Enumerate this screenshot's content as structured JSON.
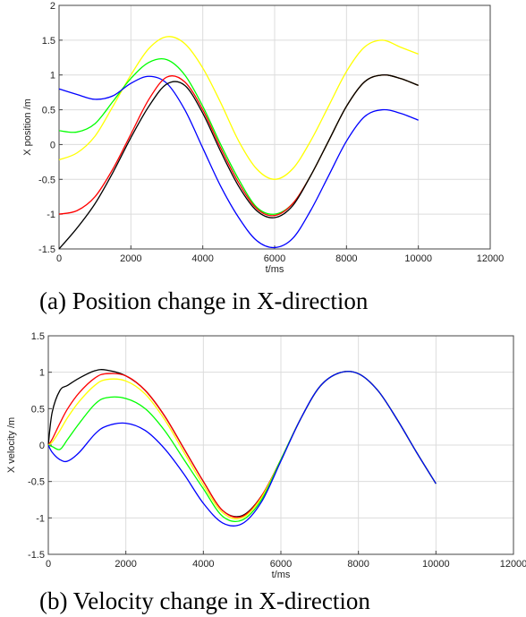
{
  "chart_data": [
    {
      "type": "line",
      "caption": "(a) Position change in X-direction",
      "xlabel": "t/ms",
      "ylabel": "X position /m",
      "xlim": [
        0,
        12000
      ],
      "ylim": [
        -1.5,
        2
      ],
      "xticks": [
        "0",
        "2000",
        "4000",
        "6000",
        "8000",
        "10000",
        "12000"
      ],
      "yticks": [
        "-1.5",
        "-1",
        "-0.5",
        "0",
        "0.5",
        "1",
        "1.5",
        "2"
      ],
      "grid": true,
      "x": [
        0,
        500,
        1000,
        1500,
        2000,
        2500,
        3000,
        3500,
        4000,
        4500,
        5000,
        5500,
        6000,
        6500,
        7000,
        7500,
        8000,
        8500,
        9000,
        9500,
        10000
      ],
      "series": [
        {
          "color": "#ffff00",
          "values": [
            -0.22,
            -0.12,
            0.12,
            0.55,
            1.0,
            1.38,
            1.55,
            1.45,
            1.1,
            0.6,
            0.05,
            -0.35,
            -0.5,
            -0.35,
            0.05,
            0.55,
            1.05,
            1.4,
            1.5,
            1.4,
            1.3
          ]
        },
        {
          "color": "#00ff00",
          "values": [
            0.2,
            0.18,
            0.3,
            0.62,
            0.95,
            1.18,
            1.22,
            1.0,
            0.55,
            0.0,
            -0.5,
            -0.9,
            -1.0,
            -0.85,
            -0.45,
            0.05,
            0.55,
            0.9,
            1.0,
            0.95,
            0.85
          ]
        },
        {
          "color": "#0000ff",
          "values": [
            0.8,
            0.72,
            0.65,
            0.7,
            0.88,
            0.98,
            0.88,
            0.5,
            -0.05,
            -0.6,
            -1.05,
            -1.38,
            -1.48,
            -1.35,
            -0.95,
            -0.45,
            0.05,
            0.4,
            0.5,
            0.45,
            0.35
          ]
        },
        {
          "color": "#ff0000",
          "values": [
            -1.0,
            -0.95,
            -0.75,
            -0.35,
            0.15,
            0.65,
            0.97,
            0.9,
            0.5,
            -0.05,
            -0.55,
            -0.92,
            -1.02,
            -0.85,
            -0.45,
            0.05,
            0.55,
            0.9,
            1.0,
            0.95,
            0.85
          ]
        },
        {
          "color": "#000000",
          "values": [
            -1.5,
            -1.2,
            -0.85,
            -0.4,
            0.1,
            0.55,
            0.87,
            0.85,
            0.45,
            -0.1,
            -0.6,
            -0.95,
            -1.05,
            -0.88,
            -0.45,
            0.05,
            0.55,
            0.9,
            1.0,
            0.95,
            0.85
          ]
        }
      ]
    },
    {
      "type": "line",
      "caption": "(b) Velocity change in X-direction",
      "xlabel": "t/ms",
      "ylabel": "X velocity /m",
      "xlim": [
        0,
        12000
      ],
      "ylim": [
        -1.5,
        1.5
      ],
      "xticks": [
        "0",
        "2000",
        "4000",
        "6000",
        "8000",
        "10000",
        "12000"
      ],
      "yticks": [
        "-1.5",
        "-1",
        "-0.5",
        "0",
        "0.5",
        "1",
        "1.5"
      ],
      "grid": true,
      "x": [
        0,
        100,
        300,
        500,
        800,
        1200,
        1500,
        2000,
        2500,
        3000,
        3500,
        4000,
        4500,
        5000,
        5500,
        6000,
        6500,
        7000,
        7500,
        8000,
        8500,
        9000,
        9500,
        10000
      ],
      "series": [
        {
          "color": "#000000",
          "values": [
            0.0,
            0.45,
            0.75,
            0.82,
            0.92,
            1.02,
            1.03,
            0.95,
            0.75,
            0.4,
            -0.05,
            -0.5,
            -0.9,
            -0.97,
            -0.7,
            -0.2,
            0.35,
            0.8,
            0.99,
            0.98,
            0.75,
            0.35,
            -0.1,
            -0.53
          ]
        },
        {
          "color": "#ff0000",
          "values": [
            0.0,
            0.08,
            0.3,
            0.5,
            0.72,
            0.92,
            0.98,
            0.95,
            0.75,
            0.4,
            -0.05,
            -0.5,
            -0.9,
            -0.98,
            -0.7,
            -0.2,
            0.35,
            0.8,
            0.99,
            0.98,
            0.75,
            0.35,
            -0.1,
            -0.53
          ]
        },
        {
          "color": "#ffff00",
          "values": [
            0.0,
            0.04,
            0.2,
            0.38,
            0.6,
            0.82,
            0.9,
            0.88,
            0.7,
            0.35,
            -0.1,
            -0.55,
            -0.93,
            -1.0,
            -0.72,
            -0.2,
            0.35,
            0.8,
            0.99,
            0.98,
            0.75,
            0.35,
            -0.1,
            -0.53
          ]
        },
        {
          "color": "#00ff00",
          "values": [
            0.0,
            -0.02,
            -0.06,
            0.08,
            0.3,
            0.56,
            0.65,
            0.64,
            0.5,
            0.2,
            -0.2,
            -0.6,
            -0.98,
            -1.03,
            -0.75,
            -0.2,
            0.35,
            0.8,
            0.99,
            0.98,
            0.75,
            0.35,
            -0.1,
            -0.53
          ]
        },
        {
          "color": "#0000ff",
          "values": [
            0.0,
            -0.1,
            -0.2,
            -0.22,
            -0.1,
            0.15,
            0.26,
            0.3,
            0.2,
            -0.05,
            -0.4,
            -0.8,
            -1.07,
            -1.08,
            -0.78,
            -0.22,
            0.35,
            0.8,
            0.99,
            0.98,
            0.75,
            0.35,
            -0.1,
            -0.53
          ]
        }
      ]
    }
  ]
}
